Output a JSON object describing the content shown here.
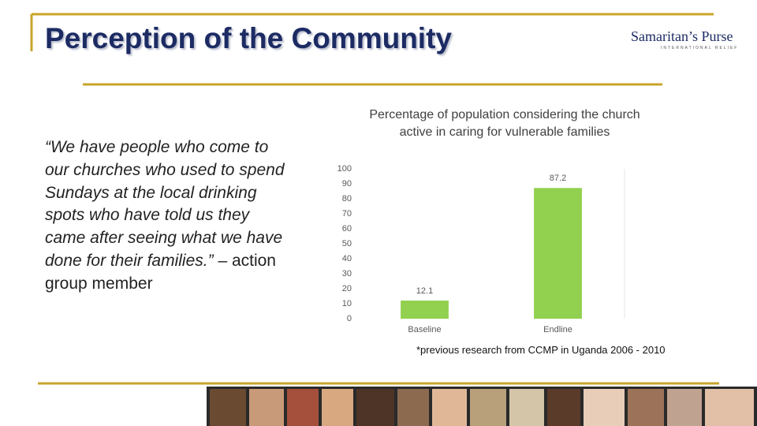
{
  "title": "Perception of the Community",
  "logo": {
    "name": "Samaritan’s Purse",
    "tagline": "INTERNATIONAL RELIEF"
  },
  "quote": "“We have people who come to our churches who used to spend Sundays at the local drinking spots who have told us they came after seeing what we have done for their families.”",
  "attribution": "– action group member",
  "footnote": "*previous research from CCMP in Uganda 2006 - 2010",
  "chart_data": {
    "type": "bar",
    "title": "Percentage of population considering the church active in caring for vulnerable families",
    "categories": [
      "Baseline",
      "Endline"
    ],
    "values": [
      12.1,
      87.2
    ],
    "color": "#92d050",
    "ylim": [
      0,
      100
    ],
    "yticks": [
      0,
      10,
      20,
      30,
      40,
      50,
      60,
      70,
      80,
      90,
      100
    ],
    "grid": false
  }
}
